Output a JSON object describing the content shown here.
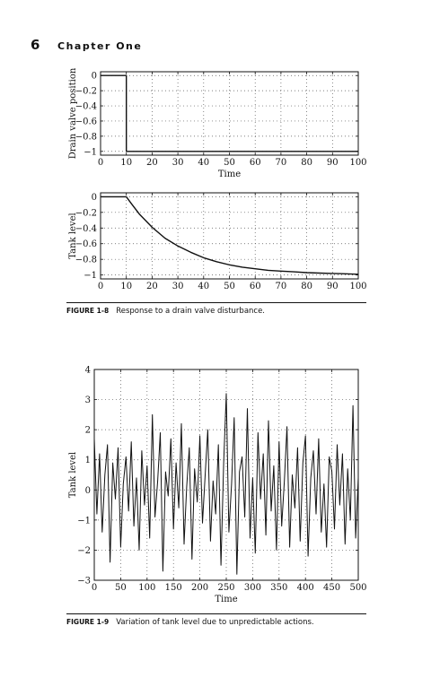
{
  "header": {
    "page_number": "6",
    "chapter_title": "Chapter One"
  },
  "figures": [
    {
      "label": "FIGURE 1-8",
      "caption": "Response to a drain valve disturbance."
    },
    {
      "label": "FIGURE 1-9",
      "caption": "Variation of tank level due to unpredictable actions."
    }
  ],
  "chart_data": [
    {
      "type": "line",
      "title": "",
      "xlabel": "Time",
      "ylabel": "Drain valve position",
      "xlim": [
        0,
        100
      ],
      "ylim": [
        -1.05,
        0.05
      ],
      "xticks": [
        "0",
        "10",
        "20",
        "30",
        "40",
        "50",
        "60",
        "70",
        "80",
        "90",
        "100"
      ],
      "yticks": [
        "0",
        "−0.2",
        "−0.4",
        "−0.6",
        "−0.8",
        "−1"
      ],
      "grid": true,
      "series": [
        {
          "x": [
            0,
            10,
            10,
            100
          ],
          "y": [
            0,
            0,
            -1,
            -1
          ]
        }
      ]
    },
    {
      "type": "line",
      "title": "",
      "xlabel": "",
      "ylabel": "Tank level",
      "xlim": [
        0,
        100
      ],
      "ylim": [
        -1.05,
        0.05
      ],
      "xticks": [
        "0",
        "10",
        "20",
        "30",
        "40",
        "50",
        "60",
        "70",
        "80",
        "90",
        "100"
      ],
      "yticks": [
        "0",
        "−0.2",
        "−0.4",
        "−0.6",
        "−0.8",
        "−1"
      ],
      "grid": true,
      "series": [
        {
          "x": [
            0,
            8,
            10,
            12,
            15,
            20,
            25,
            30,
            35,
            40,
            45,
            50,
            55,
            60,
            65,
            70,
            75,
            80,
            85,
            90,
            95,
            100
          ],
          "y": [
            0,
            0,
            0,
            -0.09,
            -0.22,
            -0.39,
            -0.53,
            -0.63,
            -0.71,
            -0.78,
            -0.83,
            -0.87,
            -0.9,
            -0.92,
            -0.94,
            -0.95,
            -0.96,
            -0.97,
            -0.975,
            -0.98,
            -0.985,
            -0.99
          ]
        }
      ]
    },
    {
      "type": "line",
      "title": "",
      "xlabel": "Time",
      "ylabel": "Tank level",
      "xlim": [
        0,
        500
      ],
      "ylim": [
        -3,
        4
      ],
      "xticks": [
        "0",
        "50",
        "100",
        "150",
        "200",
        "250",
        "300",
        "350",
        "400",
        "450",
        "500"
      ],
      "yticks": [
        "4",
        "3",
        "2",
        "1",
        "0",
        "−1",
        "−2",
        "−3"
      ],
      "grid": true,
      "series": [
        {
          "x": [
            0,
            5,
            10,
            15,
            20,
            25,
            30,
            35,
            40,
            45,
            50,
            55,
            60,
            65,
            70,
            75,
            80,
            85,
            90,
            95,
            100,
            105,
            110,
            115,
            120,
            125,
            130,
            135,
            140,
            145,
            150,
            155,
            160,
            165,
            170,
            175,
            180,
            185,
            190,
            195,
            200,
            205,
            210,
            215,
            220,
            225,
            230,
            235,
            240,
            245,
            250,
            255,
            260,
            265,
            270,
            275,
            280,
            285,
            290,
            295,
            300,
            305,
            310,
            315,
            320,
            325,
            330,
            335,
            340,
            345,
            350,
            355,
            360,
            365,
            370,
            375,
            380,
            385,
            390,
            395,
            400,
            405,
            410,
            415,
            420,
            425,
            430,
            435,
            440,
            445,
            450,
            455,
            460,
            465,
            470,
            475,
            480,
            485,
            490,
            495,
            500
          ],
          "y": [
            1.7,
            -0.8,
            1.2,
            -1.4,
            0.5,
            1.5,
            -2.4,
            0.9,
            -0.3,
            1.4,
            -1.9,
            0.2,
            1.1,
            -0.7,
            1.6,
            -1.2,
            0.4,
            -2.0,
            1.3,
            -0.5,
            0.8,
            -1.6,
            2.5,
            -0.9,
            0.3,
            1.9,
            -2.7,
            0.6,
            -0.2,
            1.7,
            -1.3,
            0.9,
            -0.6,
            2.2,
            -1.8,
            0.1,
            1.4,
            -2.3,
            0.7,
            -0.4,
            1.8,
            -1.1,
            0.5,
            2.0,
            -1.7,
            0.3,
            -0.8,
            1.5,
            -2.5,
            0.9,
            3.2,
            -1.4,
            0.2,
            2.4,
            -2.8,
            0.6,
            1.1,
            -0.9,
            2.7,
            -1.6,
            0.4,
            -2.1,
            1.9,
            -0.3,
            1.2,
            -1.5,
            2.3,
            -0.7,
            0.8,
            -2.0,
            1.6,
            -1.2,
            0.3,
            2.1,
            -1.9,
            0.5,
            -0.6,
            1.4,
            -1.7,
            0.9,
            1.8,
            -2.2,
            0.4,
            1.3,
            -0.8,
            1.7,
            -1.4,
            0.2,
            -1.9,
            1.1,
            0.6,
            -1.3,
            1.5,
            -0.5,
            1.2,
            -1.8,
            0.7,
            -1.0,
            2.8,
            -1.6,
            0.4
          ]
        }
      ]
    }
  ]
}
